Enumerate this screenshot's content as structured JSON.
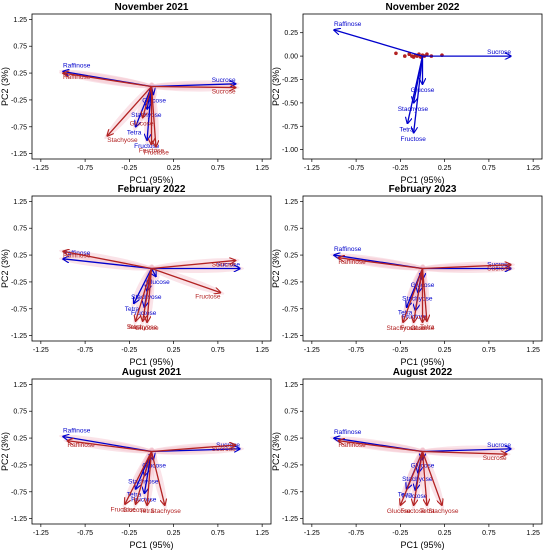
{
  "colors": {
    "set_a": "#0000cc",
    "set_b": "#b22222",
    "halo": "#f4c2cc"
  },
  "chart_data": [
    {
      "type": "biplot",
      "title": "November 2021",
      "xlabel": "PC1 (95%)",
      "ylabel": "PC2 (3%)",
      "xlim": [
        -1.35,
        1.35
      ],
      "ylim": [
        -1.35,
        1.35
      ],
      "xticks": [
        "-1.25",
        "-0.75",
        "-0.25",
        "0.25",
        "0.75",
        "1.25"
      ],
      "yticks": [
        "1.25",
        "0.75",
        "0.25",
        "-0.25",
        "-0.75",
        "-1.25"
      ],
      "show_halo": true,
      "series": [
        {
          "key": "set_a",
          "vectors": [
            {
              "label": "Raffinose",
              "x": -1.0,
              "y": 0.28
            },
            {
              "label": "Sucrose",
              "x": 0.95,
              "y": 0.05
            },
            {
              "label": "Glucose",
              "x": 0.02,
              "y": -0.15
            },
            {
              "label": "Stachyose",
              "x": -0.05,
              "y": -0.42
            },
            {
              "label": "Tetra",
              "x": -0.18,
              "y": -0.75
            },
            {
              "label": "Fructose",
              "x": -0.05,
              "y": -1.0
            }
          ]
        },
        {
          "key": "set_b",
          "vectors": [
            {
              "label": "Raffinose",
              "x": -1.0,
              "y": 0.25
            },
            {
              "label": "Sucrose",
              "x": 0.95,
              "y": -0.02
            },
            {
              "label": "Glucose",
              "x": -0.1,
              "y": -0.58
            },
            {
              "label": "Stachyose",
              "x": -0.5,
              "y": -0.92
            },
            {
              "label": "Fructose",
              "x": 0.0,
              "y": -1.08
            },
            {
              "label": "Fructose",
              "x": 0.05,
              "y": -1.12
            }
          ]
        }
      ]
    },
    {
      "type": "biplot",
      "title": "November 2022",
      "xlabel": "PC1 (95%)",
      "ylabel": "PC2 (3%)",
      "xlim": [
        -1.35,
        1.35
      ],
      "ylim": [
        -1.1,
        0.45
      ],
      "xticks": [
        "-1.25",
        "-0.75",
        "-0.25",
        "0.25",
        "0.75",
        "1.25"
      ],
      "yticks": [
        "0.25",
        "0.00",
        "-0.25",
        "-0.50",
        "-0.75",
        "-1.00"
      ],
      "show_halo": false,
      "points": {
        "key": "set_b",
        "x": [
          -0.3,
          -0.2,
          -0.15,
          -0.12,
          -0.1,
          -0.08,
          -0.06,
          -0.04,
          -0.02,
          0.0,
          0.02,
          0.05,
          0.1,
          0.22
        ],
        "y": [
          0.03,
          0.0,
          0.02,
          0.0,
          -0.01,
          0.01,
          0.0,
          0.02,
          -0.01,
          0.01,
          0.0,
          0.02,
          0.0,
          0.01
        ]
      },
      "series": [
        {
          "key": "set_a",
          "vectors": [
            {
              "label": "Raffinose",
              "x": -1.0,
              "y": 0.28
            },
            {
              "label": "Sucrose",
              "x": 1.0,
              "y": 0.0
            },
            {
              "label": "Glucose",
              "x": 0.0,
              "y": -0.3
            },
            {
              "label": "Stachyose",
              "x": -0.1,
              "y": -0.5
            },
            {
              "label": "Tetra",
              "x": -0.17,
              "y": -0.72
            },
            {
              "label": "Fructose",
              "x": -0.1,
              "y": -0.82
            }
          ]
        }
      ]
    },
    {
      "type": "biplot",
      "title": "February 2022",
      "xlabel": "PC1 (95%)",
      "ylabel": "PC2 (3%)",
      "xlim": [
        -1.35,
        1.35
      ],
      "ylim": [
        -1.35,
        1.35
      ],
      "xticks": [
        "-1.25",
        "-0.75",
        "-0.25",
        "0.25",
        "0.75",
        "1.25"
      ],
      "yticks": [
        "1.25",
        "0.75",
        "0.25",
        "-0.25",
        "-0.75",
        "-1.25"
      ],
      "show_halo": true,
      "series": [
        {
          "key": "set_a",
          "vectors": [
            {
              "label": "Raffinose",
              "x": -1.0,
              "y": 0.18
            },
            {
              "label": "Sucrose",
              "x": 1.0,
              "y": 0.0
            },
            {
              "label": "Glucose",
              "x": 0.05,
              "y": -0.15
            },
            {
              "label": "Stachyose",
              "x": -0.05,
              "y": -0.42
            },
            {
              "label": "Tetra",
              "x": -0.2,
              "y": -0.65
            },
            {
              "label": "Fructose",
              "x": -0.08,
              "y": -0.72
            }
          ]
        },
        {
          "key": "set_b",
          "vectors": [
            {
              "label": "Raffinose",
              "x": -1.0,
              "y": 0.32
            },
            {
              "label": "Sucrose",
              "x": 0.95,
              "y": 0.15
            },
            {
              "label": "Fructose",
              "x": 0.78,
              "y": -0.45
            },
            {
              "label": "Stachyose",
              "x": -0.1,
              "y": -0.98
            },
            {
              "label": "Glucose",
              "x": -0.05,
              "y": -1.0
            },
            {
              "label": "Tetra",
              "x": -0.18,
              "y": -0.98
            }
          ]
        }
      ]
    },
    {
      "type": "biplot",
      "title": "February 2023",
      "xlabel": "PC1 (95%)",
      "ylabel": "PC2 (3%)",
      "xlim": [
        -1.35,
        1.35
      ],
      "ylim": [
        -1.35,
        1.35
      ],
      "xticks": [
        "-1.25",
        "-0.75",
        "-0.25",
        "0.25",
        "0.75",
        "1.25"
      ],
      "yticks": [
        "1.25",
        "0.75",
        "0.25",
        "-0.25",
        "-0.75",
        "-1.25"
      ],
      "show_halo": true,
      "series": [
        {
          "key": "set_a",
          "vectors": [
            {
              "label": "Raffinose",
              "x": -1.0,
              "y": 0.25
            },
            {
              "label": "Sucrose",
              "x": 1.0,
              "y": 0.0
            },
            {
              "label": "Glucose",
              "x": 0.0,
              "y": -0.2
            },
            {
              "label": "Stachyose",
              "x": -0.05,
              "y": -0.45
            },
            {
              "label": "Tetra",
              "x": -0.18,
              "y": -0.72
            },
            {
              "label": "Fructose",
              "x": -0.08,
              "y": -0.78
            }
          ]
        },
        {
          "key": "set_b",
          "vectors": [
            {
              "label": "Raffinose",
              "x": -0.95,
              "y": 0.2
            },
            {
              "label": "Sucrose",
              "x": 1.0,
              "y": 0.07
            },
            {
              "label": "Stachyose",
              "x": -0.22,
              "y": -1.0
            },
            {
              "label": "Fructose",
              "x": -0.1,
              "y": -1.0
            },
            {
              "label": "Glucose",
              "x": 0.0,
              "y": -1.0
            },
            {
              "label": "Tetra",
              "x": 0.05,
              "y": -0.98
            }
          ]
        }
      ]
    },
    {
      "type": "biplot",
      "title": "August 2021",
      "xlabel": "PC1 (95%)",
      "ylabel": "PC2 (3%)",
      "xlim": [
        -1.35,
        1.35
      ],
      "ylim": [
        -1.35,
        1.35
      ],
      "xticks": [
        "-1.25",
        "-0.75",
        "-0.25",
        "0.25",
        "0.75",
        "1.25"
      ],
      "yticks": [
        "1.25",
        "0.75",
        "0.25",
        "-0.25",
        "-0.75",
        "-1.25"
      ],
      "show_halo": true,
      "series": [
        {
          "key": "set_a",
          "vectors": [
            {
              "label": "Raffinose",
              "x": -1.0,
              "y": 0.28
            },
            {
              "label": "Sucrose",
              "x": 1.0,
              "y": 0.05
            },
            {
              "label": "Glucose",
              "x": 0.02,
              "y": -0.15
            },
            {
              "label": "Stachyose",
              "x": -0.08,
              "y": -0.45
            },
            {
              "label": "Tetra",
              "x": -0.18,
              "y": -0.7
            },
            {
              "label": "Fructose",
              "x": -0.08,
              "y": -0.78
            }
          ]
        },
        {
          "key": "set_b",
          "vectors": [
            {
              "label": "Raffinose",
              "x": -0.95,
              "y": 0.2
            },
            {
              "label": "Sucrose",
              "x": 0.95,
              "y": 0.12
            },
            {
              "label": "Fructose",
              "x": -0.3,
              "y": -0.98
            },
            {
              "label": "Glucose",
              "x": -0.18,
              "y": -0.98
            },
            {
              "label": "Tetra",
              "x": -0.05,
              "y": -1.0
            },
            {
              "label": "Stachyose",
              "x": 0.15,
              "y": -1.0
            }
          ]
        }
      ]
    },
    {
      "type": "biplot",
      "title": "August 2022",
      "xlabel": "PC1 (95%)",
      "ylabel": "PC2 (3%)",
      "xlim": [
        -1.35,
        1.35
      ],
      "ylim": [
        -1.35,
        1.35
      ],
      "xticks": [
        "-1.25",
        "-0.75",
        "-0.25",
        "0.25",
        "0.75",
        "1.25"
      ],
      "yticks": [
        "1.25",
        "0.75",
        "0.25",
        "-0.25",
        "-0.75",
        "-1.25"
      ],
      "show_halo": true,
      "series": [
        {
          "key": "set_a",
          "vectors": [
            {
              "label": "Raffinose",
              "x": -1.0,
              "y": 0.25
            },
            {
              "label": "Sucrose",
              "x": 1.0,
              "y": 0.05
            },
            {
              "label": "Glucose",
              "x": 0.0,
              "y": -0.15
            },
            {
              "label": "Stachyose",
              "x": -0.05,
              "y": -0.4
            },
            {
              "label": "Tetra",
              "x": -0.18,
              "y": -0.7
            },
            {
              "label": "Fructose",
              "x": -0.08,
              "y": -0.72
            }
          ]
        },
        {
          "key": "set_b",
          "vectors": [
            {
              "label": "Raffinose",
              "x": -0.95,
              "y": 0.2
            },
            {
              "label": "Sucrose",
              "x": 0.95,
              "y": -0.05
            },
            {
              "label": "Glucose",
              "x": -0.25,
              "y": -1.0
            },
            {
              "label": "Fructose",
              "x": -0.1,
              "y": -1.0
            },
            {
              "label": "Tetra",
              "x": 0.05,
              "y": -1.0
            },
            {
              "label": "Stachyose",
              "x": 0.22,
              "y": -1.0
            }
          ]
        }
      ]
    }
  ]
}
